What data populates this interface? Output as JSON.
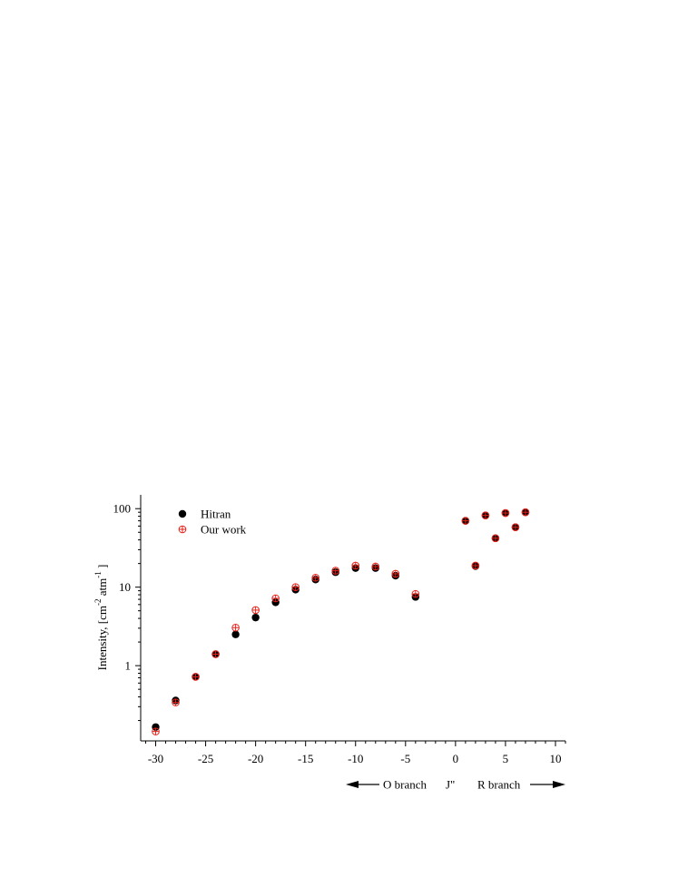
{
  "chart_data": {
    "type": "scatter",
    "ylabel": "Intensity, [cm",
    "ylabel_sup1": "-2",
    "ylabel_mid": " atm",
    "ylabel_sup2": "-1",
    "ylabel_end": " ]",
    "xlim": [
      -31.5,
      11
    ],
    "ylim": [
      0.11,
      150
    ],
    "yscale": "log",
    "x_ticks": [
      -30,
      -25,
      -20,
      -15,
      -10,
      -5,
      0,
      5,
      10
    ],
    "y_ticks": [
      1,
      10,
      100
    ],
    "x_annotation": {
      "left": "O branch",
      "center": "J\"",
      "right": "R branch"
    },
    "legend": {
      "position": "top-left",
      "entries": [
        "Hitran",
        "Our work"
      ]
    },
    "series": [
      {
        "name": "Hitran",
        "color": "#000000",
        "marker": "filled-circle",
        "points": [
          [
            -30,
            0.165
          ],
          [
            -28,
            0.36
          ],
          [
            -26,
            0.72
          ],
          [
            -24,
            1.4
          ],
          [
            -22,
            2.5
          ],
          [
            -20,
            4.1
          ],
          [
            -18,
            6.4
          ],
          [
            -16,
            9.3
          ],
          [
            -14,
            12.5
          ],
          [
            -12,
            15.5
          ],
          [
            -10,
            17.5
          ],
          [
            -8,
            17.5
          ],
          [
            -6,
            14.0
          ],
          [
            -4,
            7.5
          ],
          [
            1,
            70
          ],
          [
            2,
            18.5
          ],
          [
            3,
            82
          ],
          [
            4,
            42
          ],
          [
            5,
            88
          ],
          [
            6,
            58
          ],
          [
            7,
            90
          ]
        ]
      },
      {
        "name": "Our work",
        "color": "#e8211a",
        "marker": "circle-plus",
        "points": [
          [
            -30,
            0.145
          ],
          [
            -28,
            0.34
          ],
          [
            -26,
            0.72
          ],
          [
            -24,
            1.4
          ],
          [
            -22,
            3.05
          ],
          [
            -20,
            5.1
          ],
          [
            -18,
            7.2
          ],
          [
            -16,
            10.0
          ],
          [
            -14,
            13.2
          ],
          [
            -12,
            16.2
          ],
          [
            -10,
            18.8
          ],
          [
            -8,
            18.3
          ],
          [
            -6,
            14.8
          ],
          [
            -4,
            8.2
          ],
          [
            1,
            70
          ],
          [
            2,
            18.8
          ],
          [
            3,
            82
          ],
          [
            4,
            42
          ],
          [
            5,
            88
          ],
          [
            6,
            58
          ],
          [
            7,
            90
          ]
        ]
      }
    ]
  }
}
